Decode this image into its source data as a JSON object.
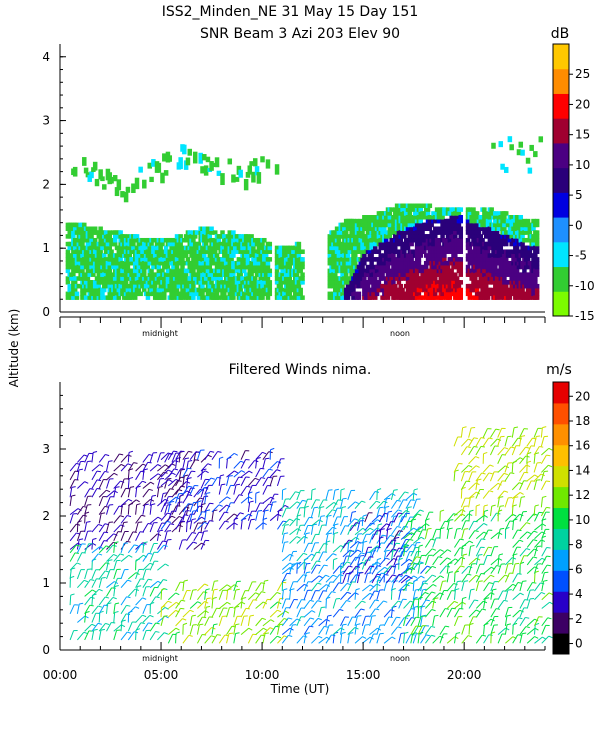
{
  "chart_data": [
    {
      "type": "heatmap",
      "title": "ISS2_Minden_NE   31 May 15 Day 151",
      "subtitle": "SNR Beam 3 Azi 203 Elev 90",
      "ylabel": "Altitude (km)",
      "xlim": [
        0,
        24
      ],
      "ylim": [
        0,
        4.2
      ],
      "yticks": [
        "0",
        "1",
        "2",
        "3",
        "4"
      ],
      "x_markers": [
        "midnight",
        "noon"
      ],
      "colorbar": {
        "unit": "dB",
        "range": [
          -15,
          30
        ],
        "ticks": [
          "25",
          "20",
          "15",
          "10",
          "5",
          "0",
          "-5",
          "-10",
          "-15"
        ],
        "colors": [
          "#7cfc00",
          "#32cd32",
          "#00e5ff",
          "#1e90ff",
          "#0000e0",
          "#2a007a",
          "#4b0082",
          "#a00030",
          "#ff0000",
          "#ff8c00",
          "#ffc800"
        ]
      },
      "layers": [
        {
          "name": "low",
          "x": [
            0.2,
            3.2,
            5.0,
            7.0,
            9.0,
            11.0,
            12.5,
            14.0,
            15.5,
            17.0,
            19.0,
            21.0,
            23.5
          ],
          "y": [
            1.4,
            1.2,
            1.1,
            1.3,
            1.2,
            1.0,
            1.1,
            1.4,
            1.5,
            1.7,
            1.6,
            1.6,
            1.4
          ],
          "snr": -10
        },
        {
          "name": "echo",
          "x": [
            14.0,
            15.0,
            16.5,
            18.0,
            19.5,
            21.0,
            23.5
          ],
          "y": [
            0.3,
            0.9,
            1.2,
            1.4,
            1.5,
            1.3,
            1.0
          ],
          "snr": 5
        },
        {
          "name": "upper",
          "x": [
            0.5,
            3.0,
            6.0,
            9.0,
            11.0
          ],
          "y": [
            2.4,
            2.0,
            2.5,
            2.2,
            2.5
          ],
          "snr": -12
        }
      ]
    },
    {
      "type": "scatter",
      "title": "Filtered Winds nima.",
      "xlabel": "Time (UT)",
      "xticks": [
        "00:00",
        "05:00",
        "10:00",
        "15:00",
        "20:00"
      ],
      "xlim": [
        0,
        24
      ],
      "ylim": [
        0,
        4
      ],
      "yticks": [
        "0",
        "1",
        "2",
        "3"
      ],
      "x_markers": [
        "midnight",
        "noon"
      ],
      "colorbar": {
        "unit": "m/s",
        "range": [
          0,
          22
        ],
        "ticks": [
          "20",
          "18",
          "16",
          "14",
          "12",
          "10",
          "8",
          "6",
          "4",
          "2",
          "0"
        ],
        "colors": [
          "#000000",
          "#3c0064",
          "#2800c8",
          "#0050ff",
          "#00a0ff",
          "#00d2a0",
          "#00e040",
          "#70e800",
          "#d0e000",
          "#ffc000",
          "#ff9000",
          "#ff5000",
          "#e60000"
        ]
      },
      "wind_regions": [
        {
          "x": [
            0.5,
            7.0
          ],
          "y": [
            1.5,
            2.9
          ],
          "speed": 3
        },
        {
          "x": [
            5.0,
            11.0
          ],
          "y": [
            1.8,
            2.9
          ],
          "speed": 4
        },
        {
          "x": [
            0.5,
            5.0
          ],
          "y": [
            0.15,
            1.5
          ],
          "speed": 9
        },
        {
          "x": [
            5.0,
            11.0
          ],
          "y": [
            0.1,
            1.0
          ],
          "speed": 13
        },
        {
          "x": [
            11.0,
            18.0
          ],
          "y": [
            0.1,
            1.2
          ],
          "speed": 7
        },
        {
          "x": [
            11.0,
            17.5
          ],
          "y": [
            1.2,
            2.3
          ],
          "speed": 8
        },
        {
          "x": [
            14.0,
            17.0
          ],
          "y": [
            1.0,
            2.0
          ],
          "speed": 4
        },
        {
          "x": [
            17.0,
            24.0
          ],
          "y": [
            0.1,
            2.0
          ],
          "speed": 11
        },
        {
          "x": [
            19.5,
            24.0
          ],
          "y": [
            2.0,
            3.2
          ],
          "speed": 14
        }
      ]
    }
  ]
}
